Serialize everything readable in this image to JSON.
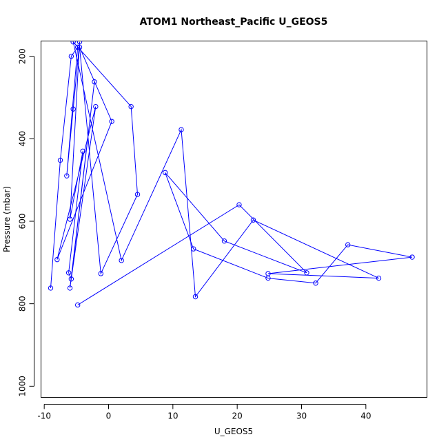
{
  "chart_data": {
    "type": "line",
    "title": "ATOM1 Northeast_Pacific U_GEOS5",
    "xlabel": "U_GEOS5",
    "ylabel": "Pressure (mbar)",
    "xlim": [
      -10.5,
      49.5
    ],
    "ylim": [
      1027,
      163
    ],
    "y_reversed": true,
    "x_ticks": [
      -10,
      0,
      10,
      20,
      30,
      40
    ],
    "x_tick_labels": [
      "-10",
      "0",
      "10",
      "20",
      "30",
      "40"
    ],
    "y_ticks": [
      200,
      400,
      600,
      800,
      1000
    ],
    "y_tick_labels": [
      "200",
      "400",
      "600",
      "800",
      "1000"
    ],
    "series_color": "#0000ff",
    "marker": "open-circle",
    "grid": false,
    "series": [
      {
        "x": [
          -9,
          -7.5,
          -5.8,
          -4.8,
          -6.5,
          -5.5,
          -4.5,
          -6,
          -4,
          -6.2,
          -5.8,
          -2.2,
          -6,
          -2,
          -8,
          0.5,
          -4.5,
          -1.2,
          4.5,
          3.5,
          -5.5,
          2,
          11.3,
          13.5,
          22.5,
          42,
          24.8,
          47.2,
          37.2,
          32.2,
          24.8,
          13.2,
          8.8,
          18,
          30.8,
          20.3,
          -4.8
        ],
        "y": [
          762,
          452,
          200,
          178,
          490,
          328,
          165,
          595,
          430,
          725,
          740,
          262,
          762,
          322,
          693,
          358,
          178,
          727,
          535,
          322,
          165,
          695,
          378,
          783,
          597,
          738,
          727,
          687,
          657,
          750,
          738,
          667,
          482,
          648,
          725,
          560,
          803
        ]
      }
    ]
  }
}
